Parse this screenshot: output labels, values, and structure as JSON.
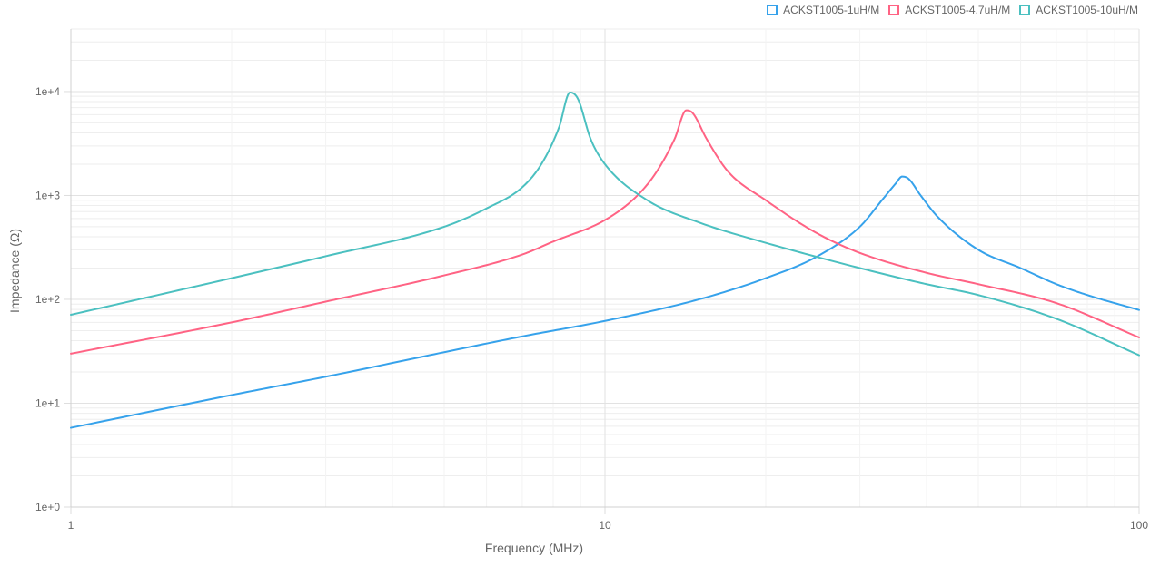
{
  "chart_data": {
    "type": "line",
    "xlabel": "Frequency (MHz)",
    "ylabel": "Impedance (Ω)",
    "x_scale": "log",
    "y_scale": "log",
    "xlim": [
      1,
      100
    ],
    "ylim": [
      1,
      40000
    ],
    "x_ticks": [
      {
        "value": 1,
        "label": "1"
      },
      {
        "value": 10,
        "label": "10"
      },
      {
        "value": 100,
        "label": "100"
      }
    ],
    "y_ticks": [
      {
        "value": 1,
        "label": "1e+0"
      },
      {
        "value": 10,
        "label": "1e+1"
      },
      {
        "value": 100,
        "label": "1e+2"
      },
      {
        "value": 1000,
        "label": "1e+3"
      },
      {
        "value": 10000,
        "label": "1e+4"
      }
    ],
    "grid": true,
    "legend_position": "top-right",
    "series": [
      {
        "name": "ACKST1005-1uH/M",
        "color": "#36a2eb",
        "points": [
          [
            1,
            5.8
          ],
          [
            2,
            12
          ],
          [
            3,
            18
          ],
          [
            5,
            31
          ],
          [
            7,
            44
          ],
          [
            10,
            62
          ],
          [
            15,
            100
          ],
          [
            20,
            160
          ],
          [
            25,
            260
          ],
          [
            30,
            500
          ],
          [
            33,
            900
          ],
          [
            35,
            1300
          ],
          [
            36,
            1520
          ],
          [
            37,
            1450
          ],
          [
            39,
            1000
          ],
          [
            42,
            620
          ],
          [
            50,
            300
          ],
          [
            60,
            200
          ],
          [
            70,
            140
          ],
          [
            80,
            110
          ],
          [
            100,
            79
          ]
        ]
      },
      {
        "name": "ACKST1005-4.7uH/M",
        "color": "#ff6384",
        "points": [
          [
            1,
            30
          ],
          [
            2,
            60
          ],
          [
            3,
            95
          ],
          [
            5,
            170
          ],
          [
            7,
            270
          ],
          [
            8,
            360
          ],
          [
            10,
            580
          ],
          [
            11.5,
            1000
          ],
          [
            12.5,
            1700
          ],
          [
            13.5,
            3500
          ],
          [
            14.2,
            6600
          ],
          [
            14.6,
            6200
          ],
          [
            15.5,
            3500
          ],
          [
            17,
            1700
          ],
          [
            20,
            900
          ],
          [
            25,
            430
          ],
          [
            30,
            280
          ],
          [
            40,
            180
          ],
          [
            50,
            140
          ],
          [
            70,
            92
          ],
          [
            100,
            43
          ]
        ]
      },
      {
        "name": "ACKST1005-10uH/M",
        "color": "#4bc0c0",
        "points": [
          [
            1,
            71
          ],
          [
            2,
            160
          ],
          [
            3,
            260
          ],
          [
            5,
            500
          ],
          [
            6,
            750
          ],
          [
            7,
            1200
          ],
          [
            7.6,
            2000
          ],
          [
            8.2,
            4500
          ],
          [
            8.6,
            9800
          ],
          [
            8.9,
            8500
          ],
          [
            9.4,
            3500
          ],
          [
            10,
            2000
          ],
          [
            12,
            900
          ],
          [
            15,
            550
          ],
          [
            20,
            350
          ],
          [
            30,
            200
          ],
          [
            40,
            140
          ],
          [
            50,
            110
          ],
          [
            70,
            65
          ],
          [
            100,
            29
          ]
        ]
      }
    ]
  }
}
